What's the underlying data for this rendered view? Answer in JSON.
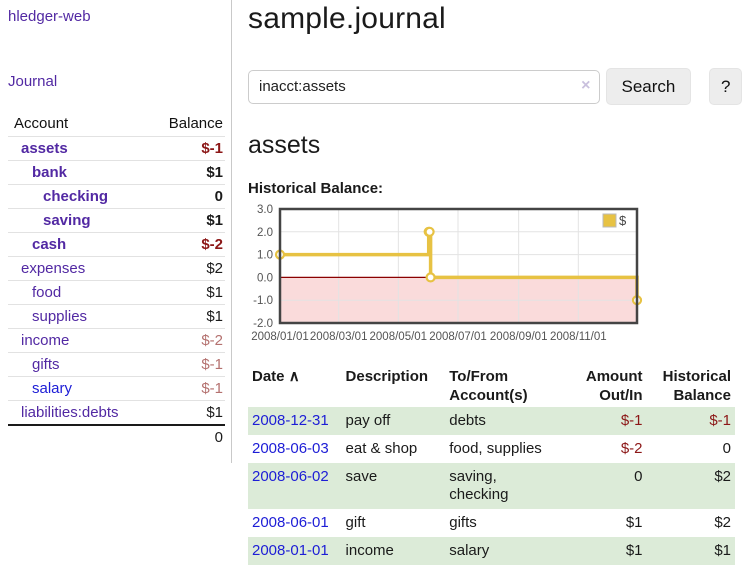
{
  "colors": {
    "link_purple": "#5229a3",
    "link_blue": "#1d1dd6",
    "negative_strong": "#8c1717",
    "negative_soft": "#b4716f",
    "row_green": "#dcebd8",
    "chart_line": "#e7c243",
    "chart_negative_fill": "#fadbdb",
    "chart_zero_line": "#8b0000",
    "chart_border": "#444444",
    "chart_grid": "#e3e3e3",
    "chart_tick_text": "#545454"
  },
  "sidebar": {
    "app_title": "hledger-web",
    "journal_label": "Journal",
    "accounts_table": {
      "headers": {
        "account": "Account",
        "balance": "Balance"
      },
      "rows": [
        {
          "name": "assets",
          "depth": 1,
          "bold": true,
          "balance": "$-1",
          "balance_class": "neg"
        },
        {
          "name": "bank",
          "depth": 2,
          "bold": true,
          "balance": "$1",
          "balance_class": ""
        },
        {
          "name": "checking",
          "depth": 3,
          "bold": true,
          "balance": "0",
          "balance_class": ""
        },
        {
          "name": "saving",
          "depth": 3,
          "bold": true,
          "balance": "$1",
          "balance_class": ""
        },
        {
          "name": "cash",
          "depth": 2,
          "bold": true,
          "balance": "$-2",
          "balance_class": "neg"
        },
        {
          "name": "expenses",
          "depth": 1,
          "bold": false,
          "balance": "$2",
          "balance_class": ""
        },
        {
          "name": "food",
          "depth": 2,
          "bold": false,
          "balance": "$1",
          "balance_class": ""
        },
        {
          "name": "supplies",
          "depth": 2,
          "bold": false,
          "balance": "$1",
          "balance_class": ""
        },
        {
          "name": "income",
          "depth": 1,
          "bold": false,
          "balance": "$-2",
          "balance_class": "negsoft"
        },
        {
          "name": "gifts",
          "depth": 2,
          "bold": false,
          "balance": "$-1",
          "balance_class": "negsoft"
        },
        {
          "name": "salary",
          "depth": 2,
          "bold": false,
          "balance": "$-1",
          "balance_class": "negsoft",
          "unvisited": true
        },
        {
          "name": "liabilities:debts",
          "depth": 1,
          "bold": false,
          "balance": "$1",
          "balance_class": ""
        }
      ],
      "total": "0"
    }
  },
  "main": {
    "title": "sample.journal",
    "search": {
      "value": "inacct:assets",
      "clear_icon": "×",
      "button_label": "Search",
      "help_label": "?"
    },
    "account_heading": "assets",
    "chart_label": "Historical Balance:"
  },
  "chart_data": {
    "type": "line",
    "step": true,
    "title": "Historical Balance:",
    "legend": {
      "label": "$",
      "position": "top-right"
    },
    "ylim": [
      -2,
      3
    ],
    "yticks": [
      3,
      2,
      1,
      0,
      -1,
      -2
    ],
    "ytick_labels": [
      "3.0",
      "2.0",
      "1.0",
      "0.0",
      "-1.0",
      "-2.0"
    ],
    "xrange": [
      "2008-01-01",
      "2008-12-31"
    ],
    "xticks": [
      "2008/01/01",
      "2008/03/01",
      "2008/05/01",
      "2008/07/01",
      "2008/09/01",
      "2008/11/01"
    ],
    "grid": true,
    "negative_region": {
      "from": -2,
      "to": 0
    },
    "series": [
      {
        "name": "$",
        "points": [
          [
            "2008-01-01",
            1
          ],
          [
            "2008-06-01",
            2
          ],
          [
            "2008-06-02",
            2
          ],
          [
            "2008-06-03",
            0
          ],
          [
            "2008-12-31",
            -1
          ]
        ]
      }
    ]
  },
  "register": {
    "headers": {
      "date": "Date",
      "sort_icon": "∧",
      "description": "Description",
      "tofrom_l1": "To/From",
      "tofrom_l2": "Account(s)",
      "amount_l1": "Amount",
      "amount_l2": "Out/In",
      "balance_l1": "Historical",
      "balance_l2": "Balance"
    },
    "rows": [
      {
        "date": "2008-12-31",
        "description": "pay off",
        "accounts": "debts",
        "amount": "$-1",
        "amount_neg": true,
        "balance": "$-1",
        "balance_neg": true
      },
      {
        "date": "2008-06-03",
        "description": "eat & shop",
        "accounts": "food, supplies",
        "amount": "$-2",
        "amount_neg": true,
        "balance": "0",
        "balance_neg": false
      },
      {
        "date": "2008-06-02",
        "description": "save",
        "accounts": "saving, checking",
        "amount": "0",
        "amount_neg": false,
        "balance": "$2",
        "balance_neg": false
      },
      {
        "date": "2008-06-01",
        "description": "gift",
        "accounts": "gifts",
        "amount": "$1",
        "amount_neg": false,
        "balance": "$2",
        "balance_neg": false
      },
      {
        "date": "2008-01-01",
        "description": "income",
        "accounts": "salary",
        "amount": "$1",
        "amount_neg": false,
        "balance": "$1",
        "balance_neg": false
      }
    ]
  }
}
